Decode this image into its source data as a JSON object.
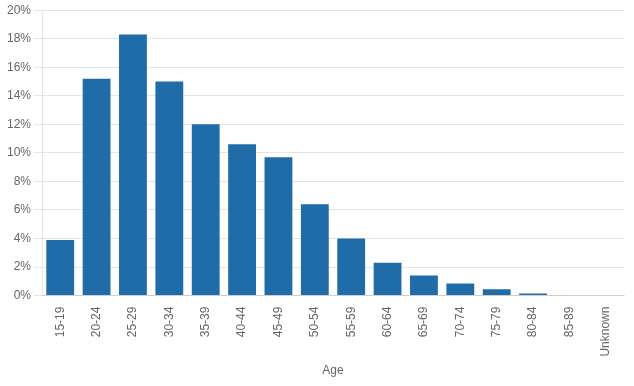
{
  "chart_data": {
    "type": "bar",
    "categories": [
      "15-19",
      "20-24",
      "25-29",
      "30-34",
      "35-39",
      "40-44",
      "45-49",
      "50-54",
      "55-59",
      "60-64",
      "65-69",
      "70-74",
      "75-79",
      "80-84",
      "85-89",
      "Unknown"
    ],
    "values": [
      3.9,
      15.2,
      18.3,
      15.0,
      12.0,
      10.6,
      9.7,
      6.4,
      4.0,
      2.3,
      1.4,
      0.85,
      0.45,
      0.15,
      0.0,
      0.0
    ],
    "color": "#1F6CA8",
    "xlabel": "Age",
    "ylim": [
      0,
      20
    ],
    "yticks": [
      {
        "value": 0,
        "label": "0%"
      },
      {
        "value": 2,
        "label": "2%"
      },
      {
        "value": 4,
        "label": "4%"
      },
      {
        "value": 6,
        "label": "6%"
      },
      {
        "value": 8,
        "label": "8%"
      },
      {
        "value": 10,
        "label": "10%"
      },
      {
        "value": 12,
        "label": "12%"
      },
      {
        "value": 14,
        "label": "14%"
      },
      {
        "value": 16,
        "label": "16%"
      },
      {
        "value": 18,
        "label": "18%"
      },
      {
        "value": 20,
        "label": "20%"
      }
    ],
    "grid": true
  }
}
